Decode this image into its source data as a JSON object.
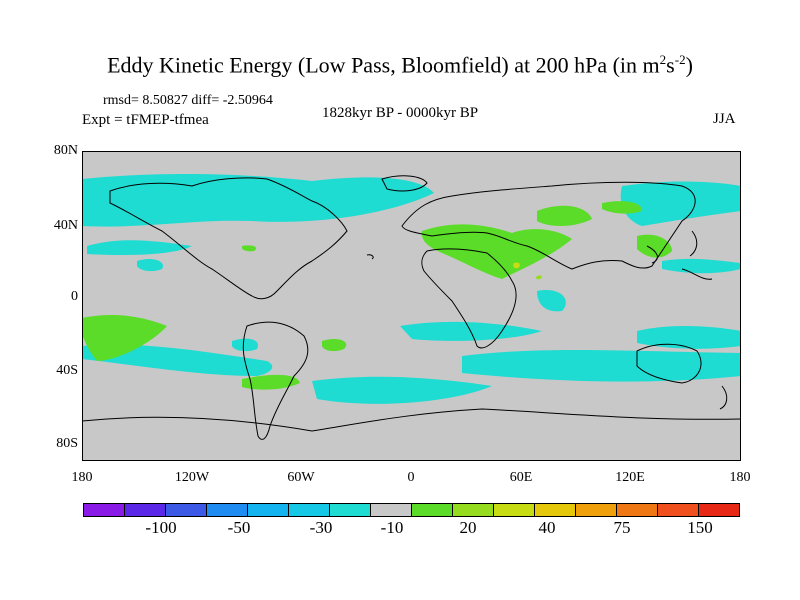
{
  "title": {
    "main": "Eddy Kinetic Energy (Low Pass, Bloomfield) at 200 hPa (in m",
    "sup1": "2",
    "mid": "s",
    "sup2": "-2",
    "end": ")"
  },
  "stats": "rmsd= 8.50827 diff= -2.50964",
  "experiment": "Expt = tFMEP-tfmea",
  "period": "1828kyr BP - 0000kyr BP",
  "season": "JJA",
  "y_ticks": [
    "80N",
    "40N",
    "0",
    "40S",
    "80S"
  ],
  "x_ticks": [
    "180",
    "120W",
    "60W",
    "0",
    "60E",
    "120E",
    "180"
  ],
  "colorbar": {
    "colors": [
      "#8a1ae6",
      "#5a28e6",
      "#3c5ae6",
      "#1e8cf0",
      "#14b4f0",
      "#14c8e6",
      "#1edcd2",
      "#c8c8c8",
      "#5adc28",
      "#96dc1e",
      "#c8dc14",
      "#e6c80a",
      "#f0a00a",
      "#f07814",
      "#f0501e",
      "#e62814"
    ],
    "labels": [
      "-100",
      "-50",
      "-30",
      "-10",
      "20",
      "40",
      "75",
      "150"
    ]
  },
  "map": {
    "background": "#c8c8c8",
    "colors": {
      "cyan": "#1edcd2",
      "green": "#5adc28",
      "yellowgreen": "#96dc1e",
      "yellow": "#c8dc14"
    }
  }
}
